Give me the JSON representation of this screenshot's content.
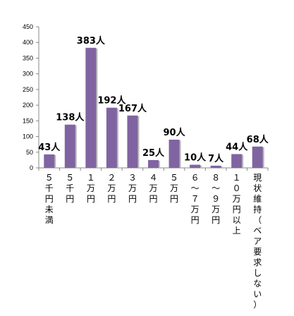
{
  "chart_data": {
    "type": "bar",
    "title": "",
    "xlabel": "",
    "ylabel": "",
    "ylim": [
      0,
      450
    ],
    "yticks": [
      0,
      50,
      100,
      150,
      200,
      250,
      300,
      350,
      400,
      450
    ],
    "grid": false,
    "legend": "none",
    "categories": [
      "５千円未満",
      "５千円",
      "１万円",
      "２万円",
      "３万円",
      "４万円",
      "５万円",
      "６〜７万円",
      "８〜９万円",
      "１０万円以上",
      "現状維持（ベア要求しない）"
    ],
    "values": [
      43,
      138,
      383,
      192,
      167,
      25,
      90,
      10,
      7,
      44,
      68
    ],
    "data_labels": [
      "43人",
      "138人",
      "383人",
      "192人",
      "167人",
      "25人",
      "90人",
      "10人",
      "7人",
      "44人",
      "68人"
    ],
    "colors": {
      "bar": "#8064A2",
      "bar_shadow": "#b9b9b9",
      "axis": "#888888"
    }
  }
}
